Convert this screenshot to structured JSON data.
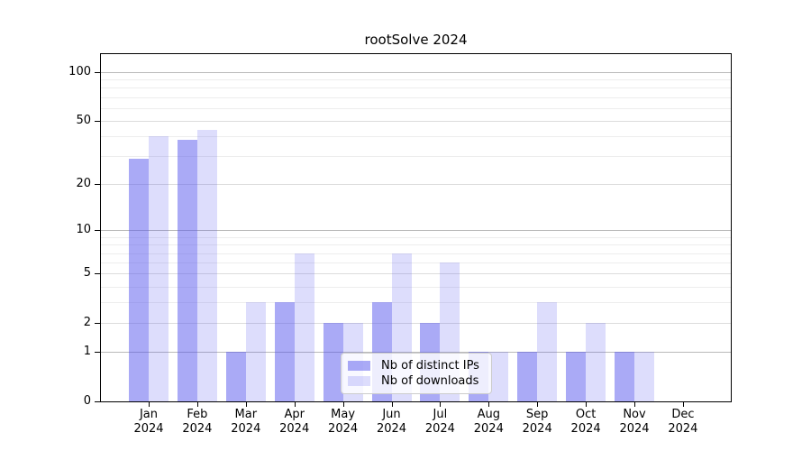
{
  "chart_data": {
    "type": "bar",
    "title": "rootSolve 2024",
    "categories": [
      "Jan",
      "Feb",
      "Mar",
      "Apr",
      "May",
      "Jun",
      "Jul",
      "Aug",
      "Sep",
      "Oct",
      "Nov",
      "Dec"
    ],
    "year": "2024",
    "series": [
      {
        "name": "Nb of distinct IPs",
        "color": "rgba(85,85,238,0.5)",
        "color_hex": "#aaaaf5",
        "values": [
          29,
          38,
          1,
          3,
          2,
          3,
          2,
          1,
          1,
          1,
          1,
          0
        ]
      },
      {
        "name": "Nb of downloads",
        "color": "rgba(85,85,238,0.2)",
        "color_hex": "#dcdcf9",
        "values": [
          40,
          44,
          3,
          7,
          2,
          7,
          6,
          1,
          3,
          2,
          1,
          0
        ]
      }
    ],
    "yscale": "log1p",
    "ylim": [
      0,
      129
    ],
    "yticks": [
      0,
      1,
      2,
      5,
      10,
      20,
      50,
      100
    ],
    "decade_gridlines": [
      1,
      10,
      100
    ],
    "minor_gridlines": [
      3,
      4,
      6,
      7,
      8,
      9,
      30,
      40,
      60,
      70,
      80,
      90
    ],
    "grid": true,
    "legend_position": "lower center",
    "accent_color": "#5555ee"
  }
}
